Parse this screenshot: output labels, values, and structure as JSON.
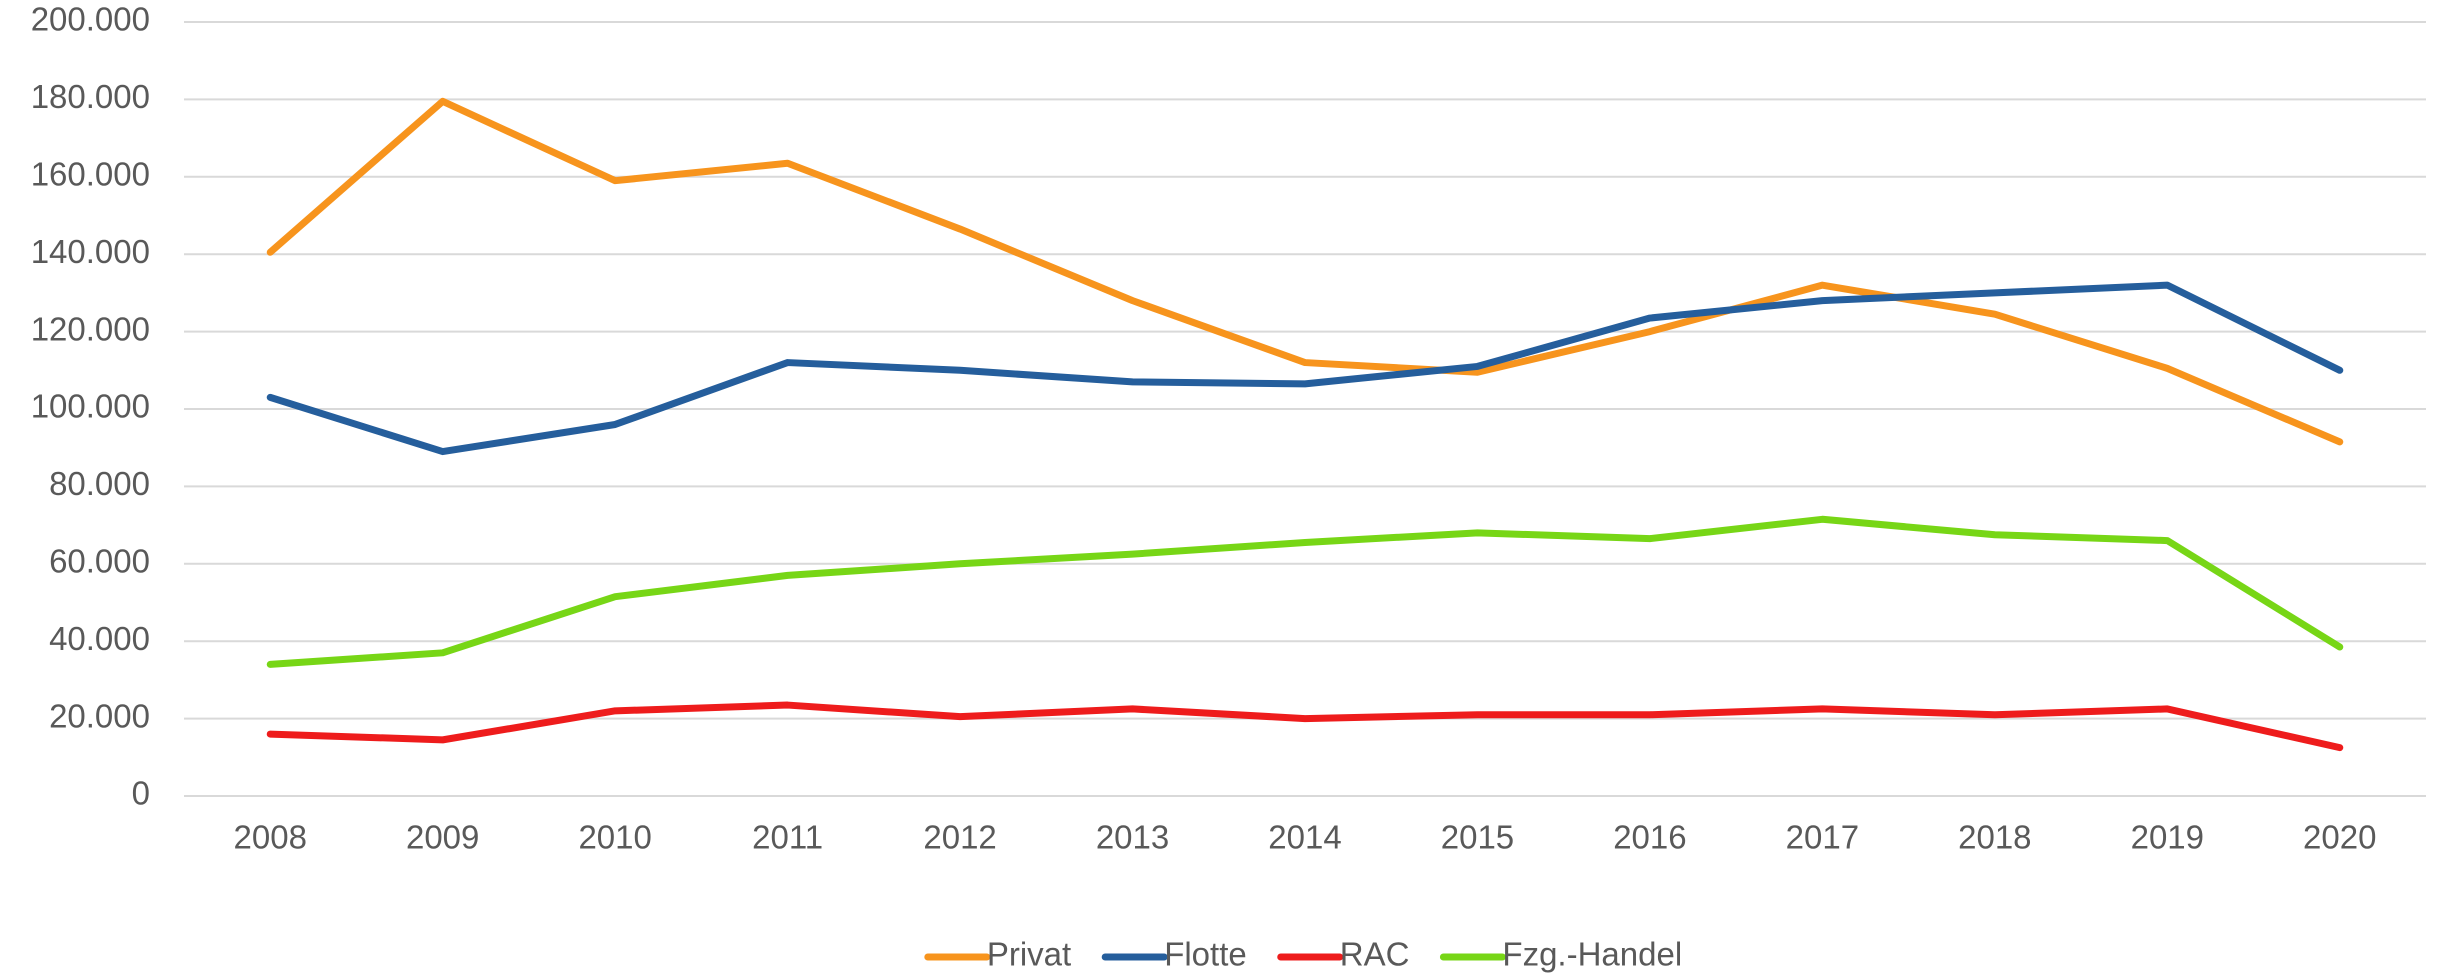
{
  "chart_data": {
    "type": "line",
    "categories": [
      "2008",
      "2009",
      "2010",
      "2011",
      "2012",
      "2013",
      "2014",
      "2015",
      "2016",
      "2017",
      "2018",
      "2019",
      "2020"
    ],
    "series": [
      {
        "name": "Privat",
        "color": "#f7941d",
        "values": [
          140500,
          179500,
          159000,
          163500,
          146500,
          128000,
          112000,
          109500,
          120000,
          132000,
          124500,
          110500,
          91500
        ]
      },
      {
        "name": "Flotte",
        "color": "#255e9c",
        "values": [
          103000,
          89000,
          96000,
          112000,
          110000,
          107000,
          106500,
          111000,
          123500,
          128000,
          130000,
          132000,
          110000
        ]
      },
      {
        "name": "RAC",
        "color": "#ee1c1c",
        "values": [
          16000,
          14500,
          22000,
          23500,
          20500,
          22500,
          20000,
          21000,
          21000,
          22500,
          21000,
          22500,
          12500
        ]
      },
      {
        "name": "Fzg.-Handel",
        "color": "#77d616",
        "values": [
          34000,
          37000,
          51500,
          57000,
          60000,
          62500,
          65500,
          68000,
          66500,
          71500,
          67500,
          66000,
          38500
        ]
      }
    ],
    "ylim": [
      0,
      200000
    ],
    "yticks": [
      0,
      {
        "value": 20000,
        "label": "20.000"
      },
      {
        "value": 40000,
        "label": "40.000"
      },
      {
        "value": 60000,
        "label": "60.000"
      },
      {
        "value": 80000,
        "label": "80.000"
      },
      {
        "value": 100000,
        "label": "100.000"
      },
      {
        "value": 120000,
        "label": "120.000"
      },
      {
        "value": 140000,
        "label": "140.000"
      },
      {
        "value": 160000,
        "label": "160.000"
      },
      {
        "value": 180000,
        "label": "180.000"
      },
      {
        "value": 200000,
        "label": "200.000"
      }
    ],
    "grid": true,
    "legend": "bottom"
  }
}
